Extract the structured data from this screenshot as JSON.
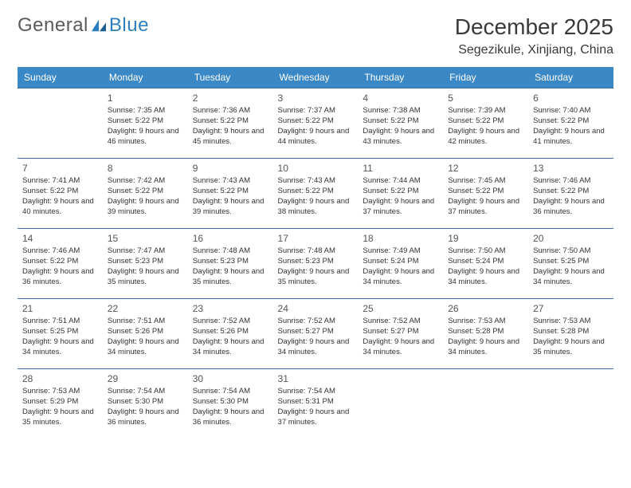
{
  "logo": {
    "text_general": "General",
    "text_blue": "Blue"
  },
  "title": "December 2025",
  "location": "Segezikule, Xinjiang, China",
  "colors": {
    "header_bg": "#3b88c6",
    "header_text": "#ffffff",
    "row_border": "#3b6fa0",
    "body_text": "#333333",
    "title_text": "#3a3a3a",
    "logo_gray": "#5a5a5a",
    "logo_blue": "#2b7fbf"
  },
  "days_of_week": [
    "Sunday",
    "Monday",
    "Tuesday",
    "Wednesday",
    "Thursday",
    "Friday",
    "Saturday"
  ],
  "weeks": [
    [
      null,
      {
        "n": "1",
        "sr": "7:35 AM",
        "ss": "5:22 PM",
        "dl": "Daylight: 9 hours and 46 minutes."
      },
      {
        "n": "2",
        "sr": "7:36 AM",
        "ss": "5:22 PM",
        "dl": "Daylight: 9 hours and 45 minutes."
      },
      {
        "n": "3",
        "sr": "7:37 AM",
        "ss": "5:22 PM",
        "dl": "Daylight: 9 hours and 44 minutes."
      },
      {
        "n": "4",
        "sr": "7:38 AM",
        "ss": "5:22 PM",
        "dl": "Daylight: 9 hours and 43 minutes."
      },
      {
        "n": "5",
        "sr": "7:39 AM",
        "ss": "5:22 PM",
        "dl": "Daylight: 9 hours and 42 minutes."
      },
      {
        "n": "6",
        "sr": "7:40 AM",
        "ss": "5:22 PM",
        "dl": "Daylight: 9 hours and 41 minutes."
      }
    ],
    [
      {
        "n": "7",
        "sr": "7:41 AM",
        "ss": "5:22 PM",
        "dl": "Daylight: 9 hours and 40 minutes."
      },
      {
        "n": "8",
        "sr": "7:42 AM",
        "ss": "5:22 PM",
        "dl": "Daylight: 9 hours and 39 minutes."
      },
      {
        "n": "9",
        "sr": "7:43 AM",
        "ss": "5:22 PM",
        "dl": "Daylight: 9 hours and 39 minutes."
      },
      {
        "n": "10",
        "sr": "7:43 AM",
        "ss": "5:22 PM",
        "dl": "Daylight: 9 hours and 38 minutes."
      },
      {
        "n": "11",
        "sr": "7:44 AM",
        "ss": "5:22 PM",
        "dl": "Daylight: 9 hours and 37 minutes."
      },
      {
        "n": "12",
        "sr": "7:45 AM",
        "ss": "5:22 PM",
        "dl": "Daylight: 9 hours and 37 minutes."
      },
      {
        "n": "13",
        "sr": "7:46 AM",
        "ss": "5:22 PM",
        "dl": "Daylight: 9 hours and 36 minutes."
      }
    ],
    [
      {
        "n": "14",
        "sr": "7:46 AM",
        "ss": "5:22 PM",
        "dl": "Daylight: 9 hours and 36 minutes."
      },
      {
        "n": "15",
        "sr": "7:47 AM",
        "ss": "5:23 PM",
        "dl": "Daylight: 9 hours and 35 minutes."
      },
      {
        "n": "16",
        "sr": "7:48 AM",
        "ss": "5:23 PM",
        "dl": "Daylight: 9 hours and 35 minutes."
      },
      {
        "n": "17",
        "sr": "7:48 AM",
        "ss": "5:23 PM",
        "dl": "Daylight: 9 hours and 35 minutes."
      },
      {
        "n": "18",
        "sr": "7:49 AM",
        "ss": "5:24 PM",
        "dl": "Daylight: 9 hours and 34 minutes."
      },
      {
        "n": "19",
        "sr": "7:50 AM",
        "ss": "5:24 PM",
        "dl": "Daylight: 9 hours and 34 minutes."
      },
      {
        "n": "20",
        "sr": "7:50 AM",
        "ss": "5:25 PM",
        "dl": "Daylight: 9 hours and 34 minutes."
      }
    ],
    [
      {
        "n": "21",
        "sr": "7:51 AM",
        "ss": "5:25 PM",
        "dl": "Daylight: 9 hours and 34 minutes."
      },
      {
        "n": "22",
        "sr": "7:51 AM",
        "ss": "5:26 PM",
        "dl": "Daylight: 9 hours and 34 minutes."
      },
      {
        "n": "23",
        "sr": "7:52 AM",
        "ss": "5:26 PM",
        "dl": "Daylight: 9 hours and 34 minutes."
      },
      {
        "n": "24",
        "sr": "7:52 AM",
        "ss": "5:27 PM",
        "dl": "Daylight: 9 hours and 34 minutes."
      },
      {
        "n": "25",
        "sr": "7:52 AM",
        "ss": "5:27 PM",
        "dl": "Daylight: 9 hours and 34 minutes."
      },
      {
        "n": "26",
        "sr": "7:53 AM",
        "ss": "5:28 PM",
        "dl": "Daylight: 9 hours and 34 minutes."
      },
      {
        "n": "27",
        "sr": "7:53 AM",
        "ss": "5:28 PM",
        "dl": "Daylight: 9 hours and 35 minutes."
      }
    ],
    [
      {
        "n": "28",
        "sr": "7:53 AM",
        "ss": "5:29 PM",
        "dl": "Daylight: 9 hours and 35 minutes."
      },
      {
        "n": "29",
        "sr": "7:54 AM",
        "ss": "5:30 PM",
        "dl": "Daylight: 9 hours and 36 minutes."
      },
      {
        "n": "30",
        "sr": "7:54 AM",
        "ss": "5:30 PM",
        "dl": "Daylight: 9 hours and 36 minutes."
      },
      {
        "n": "31",
        "sr": "7:54 AM",
        "ss": "5:31 PM",
        "dl": "Daylight: 9 hours and 37 minutes."
      },
      null,
      null,
      null
    ]
  ],
  "labels": {
    "sunrise_prefix": "Sunrise: ",
    "sunset_prefix": "Sunset: "
  }
}
